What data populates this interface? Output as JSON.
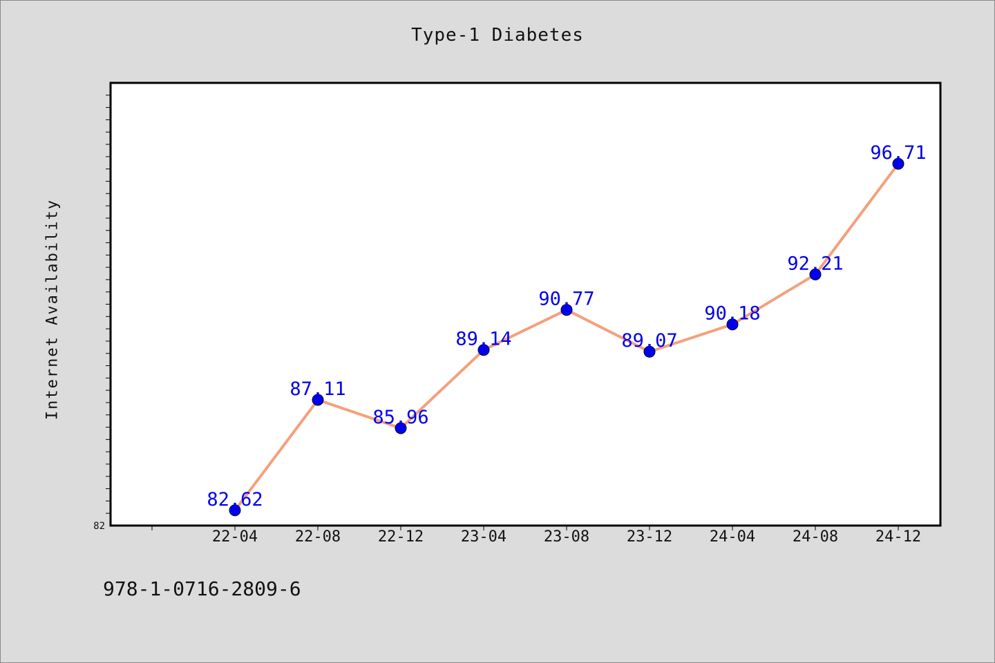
{
  "chart_data": {
    "type": "line",
    "title": "Type-1 Diabetes",
    "xlabel": "",
    "ylabel": "Internet Availability",
    "categories": [
      "22-04",
      "22-08",
      "22-12",
      "23-04",
      "23-08",
      "23-12",
      "24-04",
      "24-08",
      "24-12"
    ],
    "series": [
      {
        "values": [
          82.62,
          87.11,
          85.96,
          89.14,
          90.77,
          89.07,
          90.18,
          92.21,
          96.71
        ],
        "line_color": "#f4a07c",
        "marker_color": "#0000ee",
        "label_color": "#0000ee"
      }
    ],
    "ylim": [
      82,
      100
    ],
    "y_tick_labels": [
      "82"
    ],
    "grid": false,
    "legend": "none"
  },
  "footer": {
    "code": "978-1-0716-2809-6"
  },
  "colors": {
    "background": "#dcdcdc",
    "plot_background": "#ffffff",
    "axis": "#000000"
  }
}
